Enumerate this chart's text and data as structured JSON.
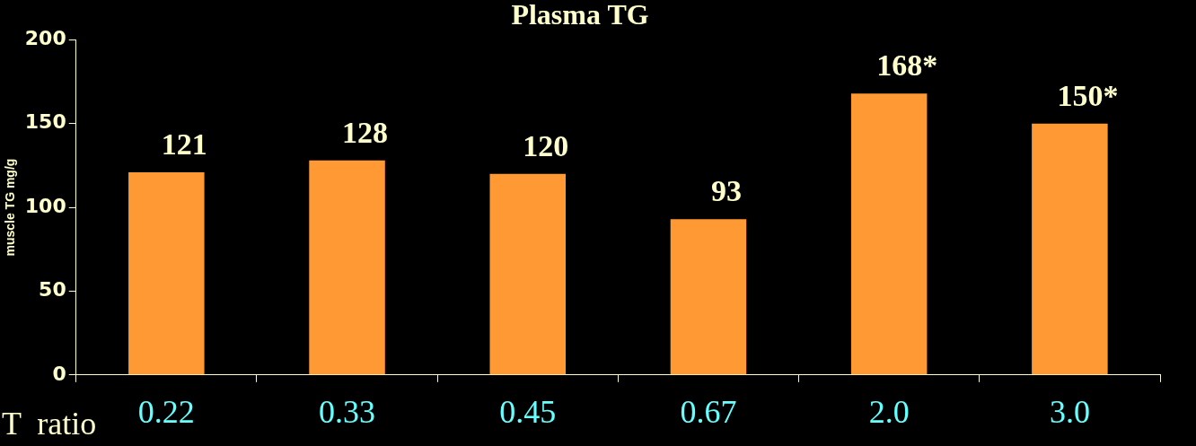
{
  "chart_data": {
    "type": "bar",
    "title": "Plasma TG",
    "xlabel": "T  ratio",
    "ylabel": "muscle TG mg/g",
    "categories": [
      "0.22",
      "0.33",
      "0.45",
      "0.67",
      "2.0",
      "3.0"
    ],
    "values": [
      121,
      128,
      120,
      93,
      168,
      150
    ],
    "value_labels": [
      "121",
      "128",
      "120",
      "93",
      "168*",
      "150*"
    ],
    "color": "#ff9933",
    "ylim": [
      0,
      200
    ],
    "yticks": [
      0,
      50,
      100,
      150,
      200
    ],
    "grid": false,
    "legend": false
  }
}
